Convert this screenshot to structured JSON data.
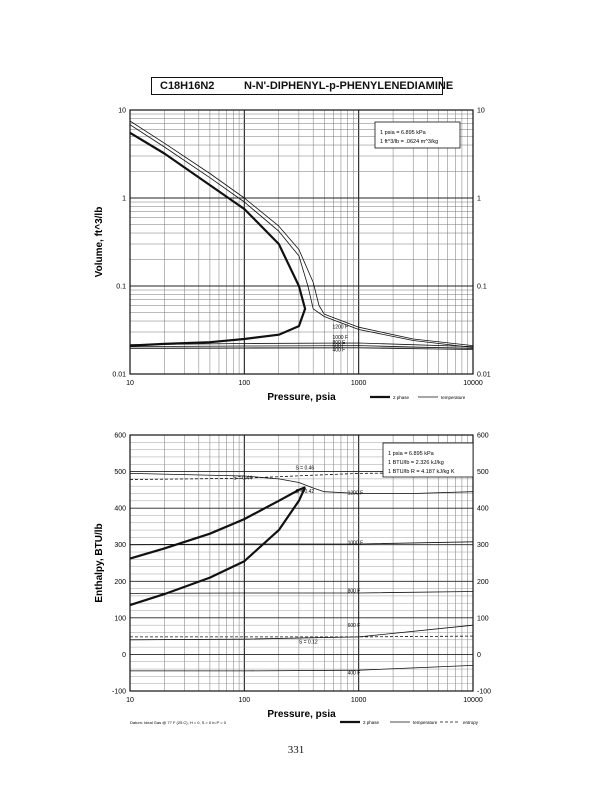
{
  "header": {
    "formula": "C18H16N2",
    "name": "N-N'-DIPHENYL-p-PHENYLENEDIAMINE"
  },
  "page_number": "331",
  "chart_data": [
    {
      "type": "line",
      "xscale": "log",
      "yscale": "log",
      "xlim": [
        10,
        10000
      ],
      "ylim": [
        0.01,
        10
      ],
      "xlabel": "Pressure,  psia",
      "ylabel": "Volume, ft^3/lb",
      "x_ticks": [
        "10",
        "100",
        "1000",
        "10000"
      ],
      "y_ticks": [
        "0.01",
        "0.1",
        "1",
        "10"
      ],
      "notes": [
        "1 psia = 6.895 kPa",
        "1 ft^3/lb = .0624 m^3/kg"
      ],
      "legend": [
        "2 phase",
        "temperature"
      ],
      "series": [
        {
          "style": "2 phase",
          "x": [
            10,
            20,
            50,
            100,
            200,
            300,
            340,
            300,
            200,
            100,
            50,
            20,
            10
          ],
          "y": [
            5.5,
            3.2,
            1.4,
            0.75,
            0.3,
            0.1,
            0.055,
            0.035,
            0.028,
            0.025,
            0.023,
            0.022,
            0.021
          ]
        },
        {
          "style": "temperature",
          "x": [
            10,
            20,
            50,
            100,
            200,
            300,
            360,
            400,
            500,
            1000,
            3000,
            10000
          ],
          "y": [
            6.8,
            3.8,
            1.7,
            0.9,
            0.42,
            0.22,
            0.1,
            0.055,
            0.045,
            0.032,
            0.024,
            0.02
          ]
        },
        {
          "style": "temperature",
          "x": [
            10,
            20,
            50,
            100,
            200,
            300,
            400,
            450,
            500,
            1000,
            3000,
            10000
          ],
          "y": [
            7.5,
            4.2,
            1.9,
            1.0,
            0.48,
            0.26,
            0.11,
            0.06,
            0.048,
            0.034,
            0.025,
            0.021
          ]
        },
        {
          "style": "temperature",
          "x": [
            10,
            100,
            1000,
            10000
          ],
          "y": [
            0.0215,
            0.0222,
            0.0225,
            0.0205
          ]
        },
        {
          "style": "temperature",
          "x": [
            10,
            100,
            1000,
            10000
          ],
          "y": [
            0.0205,
            0.0208,
            0.021,
            0.0195
          ]
        },
        {
          "style": "temperature",
          "x": [
            10,
            100,
            1000,
            10000
          ],
          "y": [
            0.0195,
            0.0197,
            0.0198,
            0.019
          ]
        }
      ],
      "labels": [
        {
          "text": "1200 F",
          "x": 590,
          "y": 0.033
        },
        {
          "text": "1000 F",
          "x": 590,
          "y": 0.025
        },
        {
          "text": "800 F",
          "x": 590,
          "y": 0.022
        },
        {
          "text": "600 F",
          "x": 590,
          "y": 0.02
        },
        {
          "text": "400 F",
          "x": 590,
          "y": 0.018
        }
      ]
    },
    {
      "type": "line",
      "xscale": "log",
      "yscale": "linear",
      "xlim": [
        10,
        10000
      ],
      "ylim": [
        -100,
        600
      ],
      "xlabel": "Pressure,  psia",
      "ylabel": "Enthalpy, BTU/lb",
      "x_ticks": [
        "10",
        "100",
        "1000",
        "10000"
      ],
      "y_ticks": [
        "-100",
        "0",
        "100",
        "200",
        "300",
        "400",
        "500",
        "600"
      ],
      "notes": [
        "1 psia = 6.895 kPa",
        "1 BTU/lb = 2.326 kJ/kg",
        "1 BTU/lb R = 4.187 kJ/kg K"
      ],
      "legend": [
        "2 phase",
        "temperature",
        "entropy"
      ],
      "footnote": "Datum: Ideal Gas @ 77 F (25 C), H = 0, S = 0 in P = 0",
      "series": [
        {
          "style": "2 phase",
          "x": [
            10,
            20,
            50,
            100,
            200,
            300,
            340
          ],
          "y": [
            262,
            290,
            330,
            370,
            420,
            450,
            457
          ]
        },
        {
          "style": "2 phase",
          "x": [
            10,
            20,
            50,
            100,
            200,
            300,
            340
          ],
          "y": [
            135,
            165,
            210,
            255,
            340,
            420,
            457
          ]
        },
        {
          "style": "temperature",
          "x": [
            10,
            100,
            200,
            300,
            400,
            500,
            1000,
            3000,
            10000
          ],
          "y": [
            495,
            488,
            480,
            470,
            455,
            445,
            440,
            440,
            445
          ]
        },
        {
          "style": "temperature",
          "x": [
            10,
            100,
            1000,
            10000
          ],
          "y": [
            300,
            302,
            302,
            308
          ]
        },
        {
          "style": "temperature",
          "x": [
            10,
            100,
            1000,
            10000
          ],
          "y": [
            167,
            168,
            168,
            172
          ]
        },
        {
          "style": "temperature",
          "x": [
            10,
            100,
            1000,
            10000
          ],
          "y": [
            40,
            42,
            48,
            80
          ]
        },
        {
          "style": "temperature",
          "x": [
            10,
            100,
            1000,
            10000
          ],
          "y": [
            -45,
            -45,
            -43,
            -30
          ]
        },
        {
          "style": "entropy",
          "x": [
            10,
            100,
            400,
            1000,
            10000
          ],
          "y": [
            478,
            482,
            490,
            495,
            498
          ]
        },
        {
          "style": "entropy",
          "x": [
            10,
            100,
            1000,
            10000
          ],
          "y": [
            48,
            48,
            48,
            50
          ]
        }
      ],
      "labels": [
        {
          "text": "S = 0.46",
          "x": 280,
          "y": 505
        },
        {
          "text": "S = 0.44",
          "x": 80,
          "y": 478
        },
        {
          "text": "S = 0.42",
          "x": 280,
          "y": 442
        },
        {
          "text": "1200 F",
          "x": 800,
          "y": 437
        },
        {
          "text": "1000 F",
          "x": 800,
          "y": 300
        },
        {
          "text": "800 F",
          "x": 800,
          "y": 170
        },
        {
          "text": "600 F",
          "x": 800,
          "y": 75
        },
        {
          "text": "S = 0.12",
          "x": 300,
          "y": 30
        },
        {
          "text": "400 F",
          "x": 800,
          "y": -55
        }
      ]
    }
  ]
}
